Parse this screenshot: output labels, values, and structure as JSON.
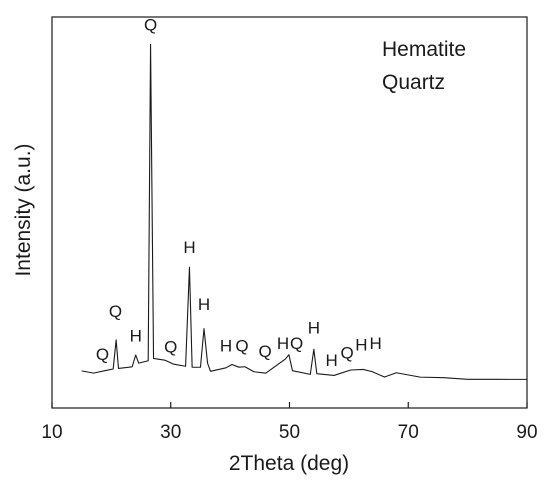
{
  "chart_data": {
    "type": "line",
    "xlabel": "2Theta (deg)",
    "ylabel": "Intensity (a.u.)",
    "xlim": [
      10,
      90
    ],
    "xticks": [
      10,
      30,
      50,
      70,
      90
    ],
    "xtick_labels": [
      "10",
      "30",
      "50",
      "70",
      "90"
    ],
    "ylim": [
      0,
      100
    ],
    "grid": false,
    "legend": [
      "Hematite",
      "Quartz"
    ],
    "legend_position": "top-right",
    "series": [
      {
        "values": [
          [
            15,
            9.5
          ],
          [
            17,
            9.3
          ],
          [
            19,
            9.6
          ],
          [
            20.3,
            10.2
          ],
          [
            20.8,
            17.4
          ],
          [
            21.2,
            10.3
          ],
          [
            23.5,
            10.8
          ],
          [
            24.1,
            13.6
          ],
          [
            24.6,
            11.2
          ],
          [
            26.2,
            11.9
          ],
          [
            26.6,
            93.0
          ],
          [
            27.1,
            12.6
          ],
          [
            29,
            11.9
          ],
          [
            30.5,
            11.2
          ],
          [
            32.5,
            10.6
          ],
          [
            33.15,
            36.0
          ],
          [
            33.6,
            10.8
          ],
          [
            35.0,
            10.6
          ],
          [
            35.6,
            20.3
          ],
          [
            36.2,
            11.6
          ],
          [
            36.7,
            9.7
          ],
          [
            39.3,
            10.5
          ],
          [
            40.3,
            11.4
          ],
          [
            41.5,
            10.2
          ],
          [
            42.5,
            10.2
          ],
          [
            44,
            9.0
          ],
          [
            46,
            8.7
          ],
          [
            49.3,
            12.1
          ],
          [
            49.9,
            13.3
          ],
          [
            50.5,
            9.3
          ],
          [
            53.5,
            9.0
          ],
          [
            54.1,
            15.0
          ],
          [
            54.6,
            8.9
          ],
          [
            57.5,
            8.5
          ],
          [
            60.3,
            9.8
          ],
          [
            62.4,
            10.1
          ],
          [
            63.9,
            9.7
          ],
          [
            66,
            8.3
          ],
          [
            68,
            8.8
          ],
          [
            72,
            7.8
          ],
          [
            76,
            7.6
          ],
          [
            80,
            7.3
          ],
          [
            85,
            7.1
          ],
          [
            90,
            7.0
          ]
        ]
      }
    ],
    "peak_labels": [
      {
        "label": "Q",
        "x": 18.5,
        "y": 12.3
      },
      {
        "label": "Q",
        "x": 20.7,
        "y": 23.3
      },
      {
        "label": "H",
        "x": 24.1,
        "y": 17.0
      },
      {
        "label": "Q",
        "x": 26.6,
        "y": 96.6
      },
      {
        "label": "Q",
        "x": 30.0,
        "y": 14.2
      },
      {
        "label": "H",
        "x": 33.15,
        "y": 39.7
      },
      {
        "label": "H",
        "x": 35.6,
        "y": 25.1
      },
      {
        "label": "H",
        "x": 39.3,
        "y": 14.4
      },
      {
        "label": "Q",
        "x": 42.0,
        "y": 14.4
      },
      {
        "label": "Q",
        "x": 45.9,
        "y": 13.0
      },
      {
        "label": "H",
        "x": 48.9,
        "y": 15.1
      },
      {
        "label": "Q",
        "x": 51.2,
        "y": 15.1
      },
      {
        "label": "H",
        "x": 54.1,
        "y": 19.0
      },
      {
        "label": "H",
        "x": 57.1,
        "y": 10.7
      },
      {
        "label": "Q",
        "x": 59.7,
        "y": 12.7
      },
      {
        "label": "H",
        "x": 62.1,
        "y": 14.7
      },
      {
        "label": "H",
        "x": 64.5,
        "y": 15.1
      }
    ]
  }
}
